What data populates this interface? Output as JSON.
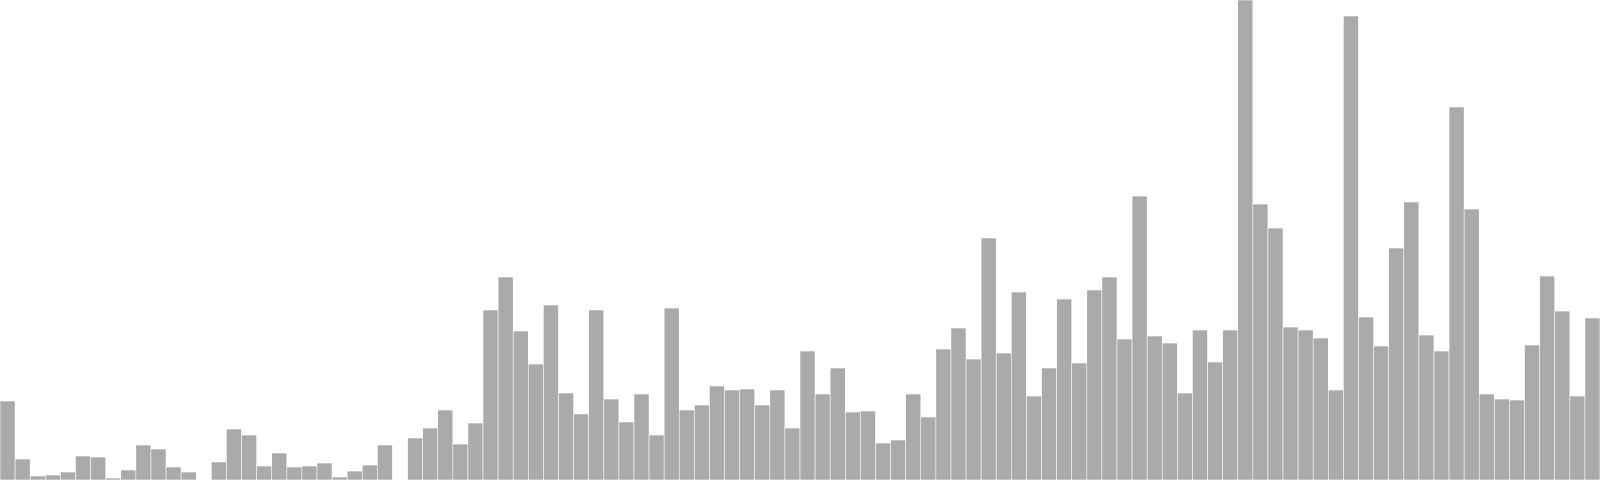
{
  "chart_data": {
    "type": "bar",
    "bar_color": "#aaaaaa",
    "bar_stroke": "#ffffff",
    "background": "#ffffff",
    "grid": false,
    "legend": "none",
    "ylim": [
      0,
      480
    ],
    "values": [
      79,
      21,
      4,
      5,
      8,
      24,
      23,
      2,
      10,
      35,
      31,
      13,
      8,
      0,
      18,
      51,
      45,
      14,
      27,
      13,
      14,
      17,
      3,
      9,
      15,
      35,
      0,
      42,
      52,
      70,
      36,
      57,
      170,
      203,
      149,
      116,
      175,
      87,
      66,
      170,
      81,
      58,
      86,
      45,
      172,
      70,
      75,
      94,
      90,
      91,
      75,
      90,
      52,
      129,
      86,
      112,
      68,
      69,
      37,
      40,
      86,
      63,
      131,
      152,
      121,
      242,
      127,
      188,
      84,
      112,
      181,
      117,
      190,
      203,
      141,
      284,
      144,
      137,
      87,
      150,
      118,
      150,
      480,
      276,
      252,
      153,
      150,
      142,
      90,
      464,
      163,
      134,
      232,
      278,
      145,
      129,
      373,
      271,
      86,
      81,
      80,
      135,
      204,
      169,
      84,
      162
    ]
  }
}
